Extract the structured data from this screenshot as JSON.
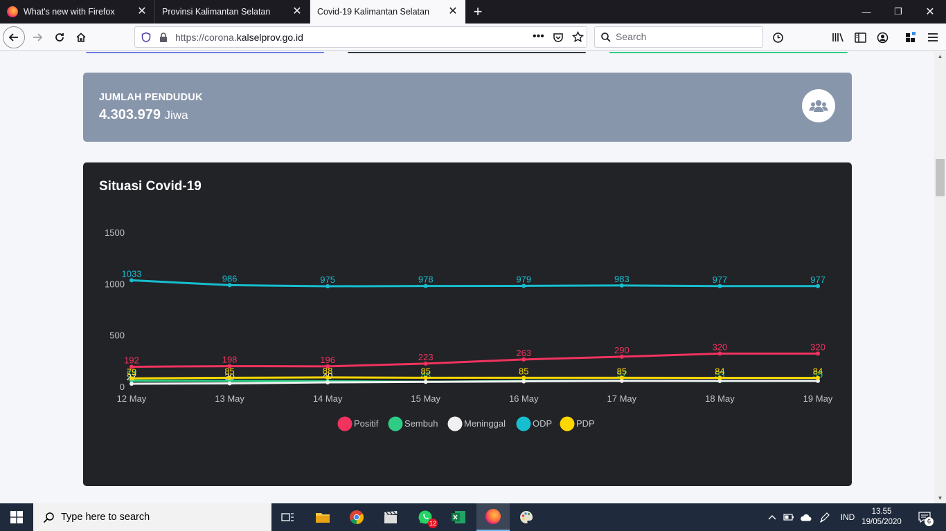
{
  "browser": {
    "tabs": [
      {
        "label": "What's new with Firefox"
      },
      {
        "label": "Provinsi Kalimantan Selatan"
      },
      {
        "label": "Covid-19 Kalimantan Selatan"
      }
    ],
    "url_prefix": "https://corona.",
    "url_domain": "kalselprov.go.id",
    "search_placeholder": "Search"
  },
  "population_card": {
    "label": "JUMLAH PENDUDUK",
    "value": "4.303.979",
    "unit": "Jiwa",
    "icon": "users-icon"
  },
  "chart_card": {
    "title": "Situasi Covid-19"
  },
  "chart_data": {
    "type": "line",
    "categories": [
      "12 May",
      "13 May",
      "14 May",
      "15 May",
      "16 May",
      "17 May",
      "18 May",
      "19 May"
    ],
    "ylim": [
      0,
      1500
    ],
    "yticks": [
      "1500",
      "1000",
      "500",
      "0"
    ],
    "ytick_values": [
      1500,
      1000,
      500,
      0
    ],
    "series": [
      {
        "name": "Positif",
        "color": "#f2335e",
        "values": [
          192,
          198,
          196,
          223,
          263,
          290,
          320,
          320
        ],
        "labels": [
          "192",
          "198",
          "196",
          "223",
          "263",
          "290",
          "320",
          "320"
        ]
      },
      {
        "name": "Sembuh",
        "color": "#2ecc85",
        "values": [
          57,
          55,
          52,
          45,
          55,
          57,
          53,
          55
        ],
        "labels": [
          "57",
          "",
          "",
          "45",
          "",
          "57",
          "53",
          "55"
        ]
      },
      {
        "name": "Meninggal",
        "color": "#f0f0f0",
        "values": [
          27,
          30,
          40,
          45,
          50,
          55,
          55,
          55
        ],
        "labels": [
          "27",
          "30",
          "40",
          "",
          "",
          "",
          "",
          ""
        ]
      },
      {
        "name": "ODP",
        "color": "#17becf",
        "values": [
          1033,
          986,
          975,
          978,
          979,
          983,
          977,
          977
        ],
        "labels": [
          "1033",
          "986",
          "975",
          "978",
          "979",
          "983",
          "977",
          "977"
        ]
      },
      {
        "name": "PDP",
        "color": "#ffd700",
        "values": [
          79,
          85,
          88,
          85,
          85,
          85,
          84,
          84
        ],
        "labels": [
          "79",
          "85",
          "88",
          "85",
          "85",
          "85",
          "84",
          "84"
        ]
      }
    ],
    "legend_placement": "bottom-center",
    "grid": false
  },
  "taskbar": {
    "search_placeholder": "Type here to search",
    "whatsapp_badge": "12",
    "language": "IND",
    "time": "13.55",
    "date": "19/05/2020",
    "notifications": "6"
  }
}
